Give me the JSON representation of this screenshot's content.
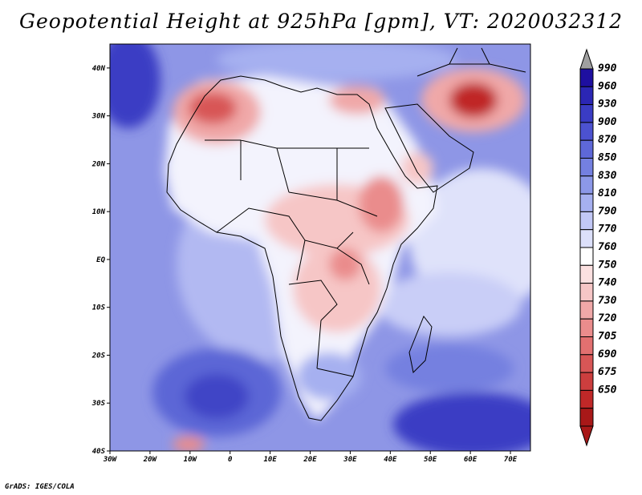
{
  "title": "Geopotential Height at 925hPa [gpm], VT: 2020032312",
  "credit": "GrADS: IGES/COLA",
  "map": {
    "region": "Africa and surrounding oceans",
    "lon_range": [
      -30,
      75
    ],
    "lat_range": [
      -40,
      45
    ],
    "lat_ticks": [
      {
        "value": 40,
        "label": "40N"
      },
      {
        "value": 30,
        "label": "30N"
      },
      {
        "value": 20,
        "label": "20N"
      },
      {
        "value": 10,
        "label": "10N"
      },
      {
        "value": 0,
        "label": "EQ"
      },
      {
        "value": -10,
        "label": "10S"
      },
      {
        "value": -20,
        "label": "20S"
      },
      {
        "value": -30,
        "label": "30S"
      },
      {
        "value": -40,
        "label": "40S"
      }
    ],
    "lon_ticks": [
      {
        "value": -30,
        "label": "30W"
      },
      {
        "value": -20,
        "label": "20W"
      },
      {
        "value": -10,
        "label": "10W"
      },
      {
        "value": 0,
        "label": "0"
      },
      {
        "value": 10,
        "label": "10E"
      },
      {
        "value": 20,
        "label": "20E"
      },
      {
        "value": 30,
        "label": "30E"
      },
      {
        "value": 40,
        "label": "40E"
      },
      {
        "value": 50,
        "label": "50E"
      },
      {
        "value": 60,
        "label": "60E"
      },
      {
        "value": 70,
        "label": "70E"
      }
    ]
  },
  "colorbar": {
    "levels": [
      "990",
      "960",
      "930",
      "900",
      "870",
      "850",
      "830",
      "810",
      "790",
      "770",
      "760",
      "750",
      "740",
      "730",
      "720",
      "705",
      "690",
      "675",
      "650"
    ],
    "colors": [
      "#1e0fa0",
      "#2b26b4",
      "#3a3cc4",
      "#4c52d0",
      "#5e68d8",
      "#7480e0",
      "#8c98e8",
      "#a6b0f0",
      "#c2c8f6",
      "#dce0fa",
      "#ffffff",
      "#fbe0e0",
      "#f6c6c6",
      "#f0a8a8",
      "#ea8c8c",
      "#e27070",
      "#d85656",
      "#cc3e3e",
      "#c02828",
      "#a81818"
    ]
  }
}
